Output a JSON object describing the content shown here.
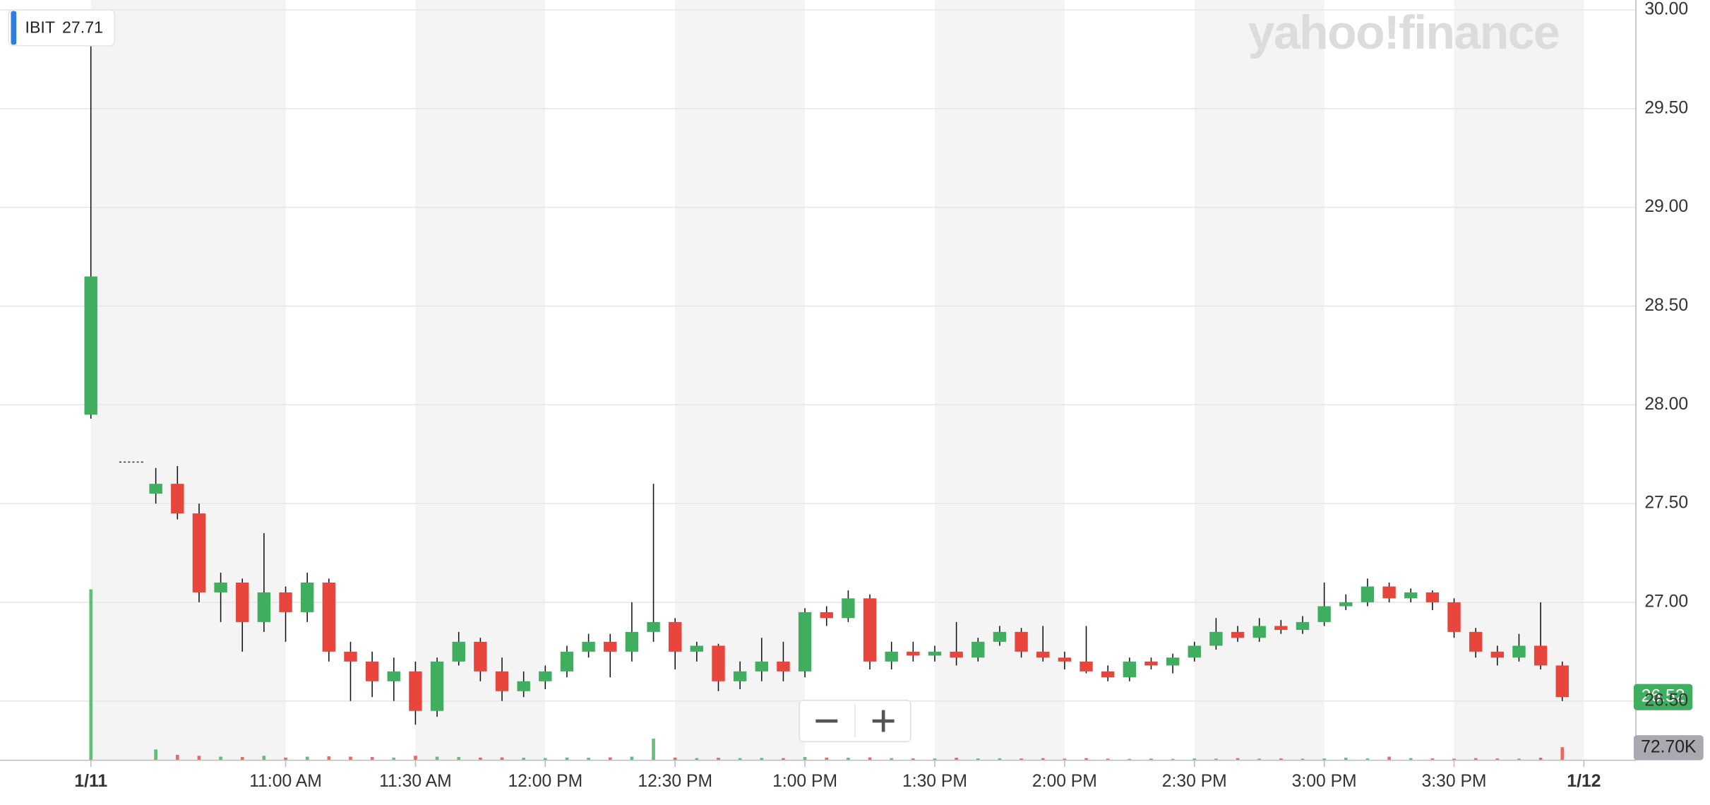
{
  "chart_data": {
    "type": "candlestick",
    "symbol": "IBIT",
    "legend_value": 27.71,
    "logo": "yahoo!finance",
    "up_color": "#3fae5e",
    "down_color": "#e8453c",
    "wick_color": "#111111",
    "grid": true,
    "xlim": [
      594,
      972
    ],
    "xticks": [
      {
        "value": 615,
        "label": "1/11"
      },
      {
        "value": 660,
        "label": "11:00 AM"
      },
      {
        "value": 690,
        "label": "11:30 AM"
      },
      {
        "value": 720,
        "label": "12:00 PM"
      },
      {
        "value": 750,
        "label": "12:30 PM"
      },
      {
        "value": 780,
        "label": "1:00 PM"
      },
      {
        "value": 810,
        "label": "1:30 PM"
      },
      {
        "value": 840,
        "label": "2:00 PM"
      },
      {
        "value": 870,
        "label": "2:30 PM"
      },
      {
        "value": 900,
        "label": "3:00 PM"
      },
      {
        "value": 930,
        "label": "3:30 PM"
      },
      {
        "value": 960,
        "label": "1/12"
      }
    ],
    "ylim": [
      26.2,
      30.05
    ],
    "yticks": [
      {
        "value": 26.5,
        "label": "26.50"
      },
      {
        "value": 27,
        "label": "27.00"
      },
      {
        "value": 27.5,
        "label": "27.50"
      },
      {
        "value": 28,
        "label": "28.00"
      },
      {
        "value": 28.5,
        "label": "28.50"
      },
      {
        "value": 29,
        "label": "29.00"
      },
      {
        "value": 29.5,
        "label": "29.50"
      },
      {
        "value": 30,
        "label": "30.00"
      }
    ],
    "x": [
      615,
      630,
      635,
      640,
      645,
      650,
      655,
      660,
      665,
      670,
      675,
      680,
      685,
      690,
      695,
      700,
      705,
      710,
      715,
      720,
      725,
      730,
      735,
      740,
      745,
      750,
      755,
      760,
      765,
      770,
      775,
      780,
      785,
      790,
      795,
      800,
      805,
      810,
      815,
      820,
      825,
      830,
      835,
      840,
      845,
      850,
      855,
      860,
      865,
      870,
      875,
      880,
      885,
      890,
      895,
      900,
      905,
      910,
      915,
      920,
      925,
      930,
      935,
      940,
      945,
      950,
      955
    ],
    "open": [
      27.95,
      27.55,
      27.6,
      27.45,
      27.05,
      27.1,
      26.9,
      27.05,
      26.95,
      27.1,
      26.75,
      26.7,
      26.6,
      26.65,
      26.45,
      26.7,
      26.8,
      26.65,
      26.55,
      26.6,
      26.65,
      26.75,
      26.8,
      26.75,
      26.85,
      26.9,
      26.75,
      26.78,
      26.6,
      26.65,
      26.7,
      26.65,
      26.95,
      26.92,
      27.02,
      26.7,
      26.75,
      26.73,
      26.75,
      26.72,
      26.8,
      26.85,
      26.75,
      26.72,
      26.7,
      26.65,
      26.62,
      26.7,
      26.68,
      26.72,
      26.78,
      26.85,
      26.82,
      26.88,
      26.86,
      26.9,
      26.98,
      27.0,
      27.08,
      27.02,
      27.05,
      27.0,
      26.85,
      26.75,
      26.72,
      26.78,
      26.68
    ],
    "high": [
      30.0,
      27.68,
      27.69,
      27.5,
      27.15,
      27.12,
      27.35,
      27.08,
      27.15,
      27.12,
      26.8,
      26.75,
      26.72,
      26.7,
      26.72,
      26.85,
      26.82,
      26.72,
      26.65,
      26.68,
      26.78,
      26.84,
      26.84,
      27.0,
      27.6,
      26.92,
      26.8,
      26.79,
      26.7,
      26.82,
      26.8,
      26.97,
      26.98,
      27.06,
      27.04,
      26.8,
      26.8,
      26.78,
      26.9,
      26.82,
      26.88,
      26.87,
      26.88,
      26.75,
      26.88,
      26.68,
      26.72,
      26.72,
      26.74,
      26.8,
      26.92,
      26.88,
      26.92,
      26.91,
      26.93,
      27.1,
      27.04,
      27.12,
      27.1,
      27.07,
      27.06,
      27.02,
      26.87,
      26.78,
      26.84,
      27.0,
      26.7
    ],
    "low": [
      27.93,
      27.5,
      27.42,
      27.0,
      26.9,
      26.75,
      26.85,
      26.8,
      26.9,
      26.7,
      26.5,
      26.52,
      26.5,
      26.38,
      26.42,
      26.68,
      26.6,
      26.5,
      26.52,
      26.56,
      26.62,
      26.72,
      26.62,
      26.7,
      26.8,
      26.66,
      26.7,
      26.55,
      26.56,
      26.6,
      26.6,
      26.62,
      26.88,
      26.9,
      26.66,
      26.66,
      26.7,
      26.7,
      26.68,
      26.7,
      26.78,
      26.72,
      26.7,
      26.66,
      26.64,
      26.6,
      26.6,
      26.66,
      26.64,
      26.7,
      26.76,
      26.8,
      26.8,
      26.84,
      26.84,
      26.88,
      26.96,
      26.98,
      27.0,
      27.0,
      26.96,
      26.82,
      26.72,
      26.68,
      26.7,
      26.66,
      26.5
    ],
    "close": [
      28.65,
      27.6,
      27.45,
      27.05,
      27.1,
      26.9,
      27.05,
      26.95,
      27.1,
      26.75,
      26.7,
      26.6,
      26.65,
      26.45,
      26.7,
      26.8,
      26.65,
      26.55,
      26.6,
      26.65,
      26.75,
      26.8,
      26.75,
      26.85,
      26.9,
      26.75,
      26.78,
      26.6,
      26.65,
      26.7,
      26.65,
      26.95,
      26.92,
      27.02,
      26.7,
      26.75,
      26.73,
      26.75,
      26.72,
      26.8,
      26.85,
      26.75,
      26.72,
      26.7,
      26.65,
      26.62,
      26.7,
      26.68,
      26.72,
      26.78,
      26.85,
      26.82,
      26.88,
      26.86,
      26.9,
      26.98,
      27.0,
      27.08,
      27.02,
      27.05,
      27.0,
      26.85,
      26.75,
      26.72,
      26.78,
      26.68,
      26.52
    ],
    "volume": [
      950000,
      60000,
      30000,
      25000,
      20000,
      18000,
      25000,
      15000,
      20000,
      22000,
      20000,
      18000,
      15000,
      25000,
      20000,
      18000,
      15000,
      16000,
      14000,
      12000,
      15000,
      14000,
      16000,
      20000,
      120000,
      15000,
      12000,
      14000,
      12000,
      13000,
      12000,
      18000,
      15000,
      14000,
      16000,
      12000,
      10000,
      10000,
      14000,
      10000,
      11000,
      10000,
      12000,
      9000,
      12000,
      9000,
      8000,
      9000,
      8000,
      10000,
      9000,
      12000,
      9000,
      10000,
      9000,
      10000,
      14000,
      10000,
      20000,
      12000,
      10000,
      9000,
      12000,
      10000,
      9000,
      14000,
      72700
    ],
    "volume_lim": [
      0,
      1000000
    ],
    "last_volume_label": "72.70K"
  }
}
